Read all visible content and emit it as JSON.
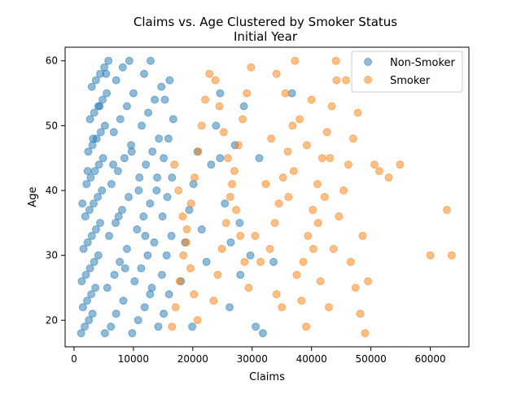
{
  "chart_data": {
    "type": "scatter",
    "title_line1": "Claims vs. Age Clustered by Smoker Status",
    "title_line2": "Initial Year",
    "xlabel": "Claims",
    "ylabel": "Age",
    "xlim": [
      -1500,
      66500
    ],
    "ylim": [
      15.9,
      62.1
    ],
    "xticks": [
      0,
      10000,
      20000,
      30000,
      40000,
      50000,
      60000
    ],
    "yticks": [
      20,
      30,
      40,
      50,
      60
    ],
    "grid": false,
    "legend_position": "top-right",
    "marker_alpha": 0.5,
    "series": [
      {
        "name": "Non-Smoker",
        "color": "#1f77b4",
        "points": [
          [
            1200,
            18
          ],
          [
            1800,
            19
          ],
          [
            2500,
            20
          ],
          [
            3100,
            21
          ],
          [
            1500,
            22
          ],
          [
            2200,
            23
          ],
          [
            2900,
            24
          ],
          [
            3600,
            25
          ],
          [
            1300,
            26
          ],
          [
            2000,
            27
          ],
          [
            2700,
            28
          ],
          [
            3400,
            29
          ],
          [
            4100,
            30
          ],
          [
            1600,
            31
          ],
          [
            2300,
            32
          ],
          [
            3000,
            33
          ],
          [
            3700,
            34
          ],
          [
            4400,
            35
          ],
          [
            1900,
            36
          ],
          [
            2600,
            37
          ],
          [
            3300,
            38
          ],
          [
            4000,
            39
          ],
          [
            4700,
            40
          ],
          [
            2100,
            41
          ],
          [
            2800,
            42
          ],
          [
            3500,
            43
          ],
          [
            4200,
            44
          ],
          [
            4900,
            45
          ],
          [
            2400,
            46
          ],
          [
            3100,
            47
          ],
          [
            3800,
            48
          ],
          [
            4500,
            49
          ],
          [
            5200,
            50
          ],
          [
            2700,
            51
          ],
          [
            3400,
            52
          ],
          [
            4100,
            53
          ],
          [
            4800,
            54
          ],
          [
            5500,
            55
          ],
          [
            3000,
            56
          ],
          [
            3700,
            57
          ],
          [
            4400,
            58
          ],
          [
            5100,
            59
          ],
          [
            5800,
            60
          ],
          [
            5200,
            18
          ],
          [
            6200,
            19
          ],
          [
            7100,
            21
          ],
          [
            8300,
            23
          ],
          [
            5600,
            25
          ],
          [
            6800,
            27
          ],
          [
            7700,
            29
          ],
          [
            8900,
            31
          ],
          [
            5900,
            33
          ],
          [
            7000,
            35
          ],
          [
            8100,
            37
          ],
          [
            9200,
            39
          ],
          [
            6300,
            41
          ],
          [
            7400,
            43
          ],
          [
            8500,
            45
          ],
          [
            9600,
            47
          ],
          [
            6700,
            49
          ],
          [
            7800,
            51
          ],
          [
            8900,
            53
          ],
          [
            10000,
            55
          ],
          [
            7100,
            57
          ],
          [
            8200,
            59
          ],
          [
            9300,
            60
          ],
          [
            9800,
            18
          ],
          [
            10800,
            20
          ],
          [
            11900,
            22
          ],
          [
            12800,
            24
          ],
          [
            10200,
            26
          ],
          [
            11300,
            28
          ],
          [
            12400,
            30
          ],
          [
            13500,
            32
          ],
          [
            10600,
            34
          ],
          [
            11700,
            36
          ],
          [
            12800,
            38
          ],
          [
            13900,
            40
          ],
          [
            11000,
            42
          ],
          [
            12100,
            44
          ],
          [
            13200,
            46
          ],
          [
            14300,
            48
          ],
          [
            11400,
            50
          ],
          [
            12500,
            52
          ],
          [
            13600,
            54
          ],
          [
            14700,
            56
          ],
          [
            11800,
            58
          ],
          [
            12900,
            60
          ],
          [
            14200,
            19
          ],
          [
            15100,
            21
          ],
          [
            16000,
            24
          ],
          [
            14800,
            27
          ],
          [
            15600,
            30
          ],
          [
            16400,
            33
          ],
          [
            14900,
            36
          ],
          [
            15700,
            39
          ],
          [
            16500,
            42
          ],
          [
            15100,
            45
          ],
          [
            15900,
            48
          ],
          [
            16700,
            51
          ],
          [
            15300,
            54
          ],
          [
            16100,
            57
          ],
          [
            1400,
            38
          ],
          [
            2300,
            43
          ],
          [
            3200,
            48
          ],
          [
            4300,
            53
          ],
          [
            5400,
            58
          ],
          [
            6600,
            44
          ],
          [
            7500,
            36
          ],
          [
            8600,
            28
          ],
          [
            9700,
            46
          ],
          [
            10900,
            40
          ],
          [
            12000,
            33
          ],
          [
            13100,
            25
          ],
          [
            14000,
            42
          ],
          [
            18000,
            26
          ],
          [
            18700,
            32
          ],
          [
            19400,
            37
          ],
          [
            20100,
            41
          ],
          [
            20800,
            46
          ],
          [
            21500,
            34
          ],
          [
            22300,
            29
          ],
          [
            23100,
            44
          ],
          [
            23900,
            50
          ],
          [
            24600,
            55
          ],
          [
            25400,
            38
          ],
          [
            26200,
            22
          ],
          [
            27100,
            47
          ],
          [
            27900,
            35
          ],
          [
            28600,
            53
          ],
          [
            29700,
            30
          ],
          [
            31200,
            45
          ],
          [
            33600,
            29
          ],
          [
            36700,
            55
          ],
          [
            31800,
            18
          ],
          [
            30600,
            19
          ],
          [
            24600,
            45
          ],
          [
            26400,
            32
          ],
          [
            19900,
            19
          ],
          [
            28000,
            27
          ]
        ]
      },
      {
        "name": "Smoker",
        "color": "#ff7f0e",
        "points": [
          [
            16500,
            19
          ],
          [
            17100,
            22
          ],
          [
            17800,
            26
          ],
          [
            18400,
            30
          ],
          [
            19000,
            34
          ],
          [
            19700,
            38
          ],
          [
            20300,
            42
          ],
          [
            20900,
            46
          ],
          [
            21500,
            50
          ],
          [
            22100,
            54
          ],
          [
            22800,
            58
          ],
          [
            16900,
            44
          ],
          [
            17600,
            40
          ],
          [
            18300,
            36
          ],
          [
            18900,
            32
          ],
          [
            19600,
            28
          ],
          [
            20200,
            24
          ],
          [
            20800,
            20
          ],
          [
            23500,
            23
          ],
          [
            24200,
            27
          ],
          [
            24900,
            31
          ],
          [
            25600,
            35
          ],
          [
            26300,
            39
          ],
          [
            27000,
            43
          ],
          [
            27700,
            47
          ],
          [
            28400,
            51
          ],
          [
            29100,
            55
          ],
          [
            29800,
            59
          ],
          [
            23800,
            57
          ],
          [
            24500,
            53
          ],
          [
            25200,
            49
          ],
          [
            25900,
            45
          ],
          [
            26600,
            41
          ],
          [
            27300,
            37
          ],
          [
            28000,
            33
          ],
          [
            28700,
            29
          ],
          [
            29400,
            25
          ],
          [
            33000,
            31
          ],
          [
            33800,
            35
          ],
          [
            34500,
            38
          ],
          [
            35200,
            42
          ],
          [
            36000,
            46
          ],
          [
            36800,
            50
          ],
          [
            37500,
            27
          ],
          [
            38300,
            23
          ],
          [
            39100,
            19
          ],
          [
            34100,
            58
          ],
          [
            35600,
            55
          ],
          [
            37200,
            60
          ],
          [
            38600,
            29
          ],
          [
            39400,
            33
          ],
          [
            40200,
            37
          ],
          [
            41000,
            41
          ],
          [
            41800,
            45
          ],
          [
            42600,
            49
          ],
          [
            43400,
            53
          ],
          [
            44200,
            57
          ],
          [
            40000,
            54
          ],
          [
            41500,
            26
          ],
          [
            42900,
            22
          ],
          [
            43700,
            31
          ],
          [
            44600,
            36
          ],
          [
            45400,
            40
          ],
          [
            46200,
            44
          ],
          [
            47000,
            48
          ],
          [
            47800,
            52
          ],
          [
            46600,
            29
          ],
          [
            47400,
            25
          ],
          [
            48200,
            21
          ],
          [
            49000,
            18
          ],
          [
            48600,
            33
          ],
          [
            44100,
            60
          ],
          [
            45800,
            57
          ],
          [
            30500,
            33
          ],
          [
            31400,
            29
          ],
          [
            32300,
            41
          ],
          [
            33200,
            48
          ],
          [
            34100,
            24
          ],
          [
            35000,
            22
          ],
          [
            36100,
            39
          ],
          [
            37000,
            43
          ],
          [
            38000,
            51
          ],
          [
            39200,
            47
          ],
          [
            40300,
            31
          ],
          [
            41100,
            35
          ],
          [
            42200,
            39
          ],
          [
            43100,
            45
          ],
          [
            49500,
            26
          ],
          [
            50600,
            44
          ],
          [
            51400,
            43
          ],
          [
            53000,
            42
          ],
          [
            54900,
            44
          ],
          [
            62800,
            37
          ],
          [
            60000,
            30
          ],
          [
            63600,
            30
          ]
        ]
      }
    ]
  }
}
